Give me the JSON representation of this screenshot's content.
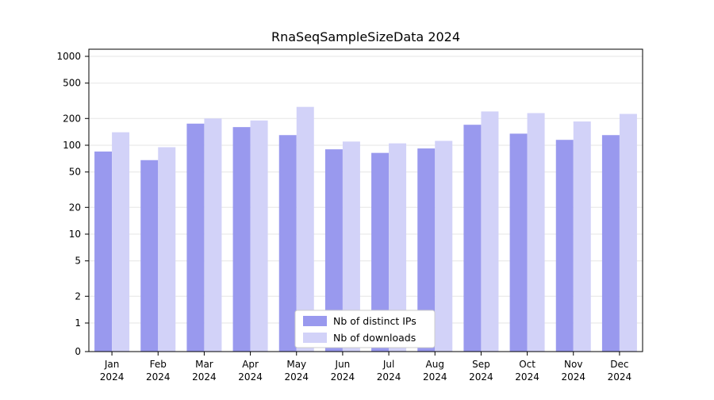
{
  "chart_data": {
    "type": "bar",
    "title": "RnaSeqSampleSizeData 2024",
    "xlabel": "",
    "ylabel": "",
    "yscale": "symlog",
    "grid": true,
    "legend_position": "lower center",
    "yticks": [
      1000,
      500,
      200,
      100,
      50,
      20,
      10,
      5,
      2,
      1,
      0
    ],
    "ylim": [
      0,
      1000
    ],
    "year_label": "2024",
    "categories": [
      "Jan",
      "Feb",
      "Mar",
      "Apr",
      "May",
      "Jun",
      "Jul",
      "Aug",
      "Sep",
      "Oct",
      "Nov",
      "Dec"
    ],
    "series": [
      {
        "name": "Nb of distinct IPs",
        "color": "#9999ee",
        "values": [
          85,
          68,
          175,
          160,
          130,
          90,
          82,
          92,
          170,
          135,
          115,
          130
        ]
      },
      {
        "name": "Nb of downloads",
        "color": "#d2d2f8",
        "values": [
          140,
          95,
          200,
          190,
          270,
          110,
          105,
          112,
          240,
          230,
          185,
          225
        ]
      }
    ]
  }
}
